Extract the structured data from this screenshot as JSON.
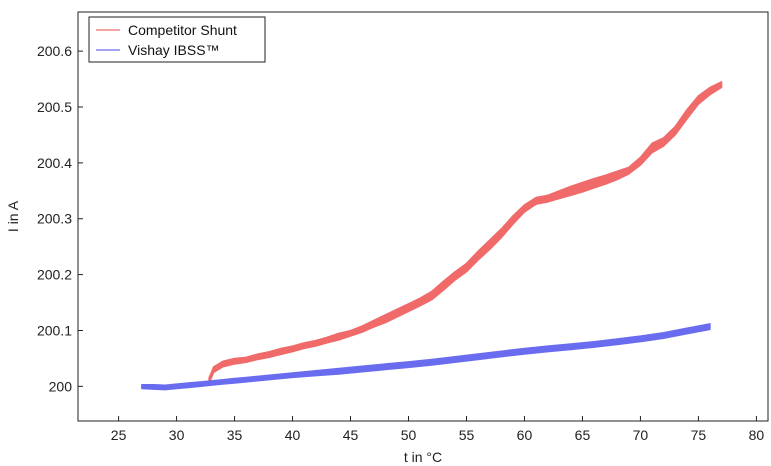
{
  "chart_data": {
    "type": "line",
    "title": "",
    "xlabel": "t in °C",
    "ylabel": "I in A",
    "xlim": [
      21.5,
      81
    ],
    "ylim": [
      199.938,
      200.67
    ],
    "x_ticks": [
      25,
      30,
      35,
      40,
      45,
      50,
      55,
      60,
      65,
      70,
      75,
      80
    ],
    "x_tick_labels": [
      "25",
      "30",
      "35",
      "40",
      "45",
      "50",
      "55",
      "60",
      "65",
      "70",
      "75",
      "80"
    ],
    "y_ticks": [
      200,
      200.1,
      200.2,
      200.3,
      200.4,
      200.5,
      200.6
    ],
    "y_tick_labels": [
      "200",
      "200.1",
      "200.2",
      "200.3",
      "200.4",
      "200.5",
      "200.6"
    ],
    "grid": false,
    "legend_position": "top-left",
    "series": [
      {
        "name": "Competitor Shunt",
        "color": "#f06a6a",
        "x": [
          32.8,
          33.2,
          34,
          35,
          36,
          37,
          38,
          39,
          40,
          41,
          42,
          43,
          44,
          45,
          46,
          47,
          48,
          49,
          50,
          51,
          52,
          53,
          54,
          55,
          56,
          57,
          58,
          59,
          60,
          61,
          62,
          63,
          64,
          65,
          66,
          67,
          68,
          69,
          70,
          71,
          72,
          73,
          74,
          75,
          76,
          77
        ],
        "upper": [
          200.015,
          200.035,
          200.045,
          200.05,
          200.052,
          200.058,
          200.062,
          200.068,
          200.072,
          200.078,
          200.082,
          200.088,
          200.095,
          200.1,
          200.108,
          200.118,
          200.128,
          200.138,
          200.148,
          200.158,
          200.17,
          200.188,
          200.205,
          200.22,
          200.242,
          200.262,
          200.282,
          200.305,
          200.325,
          200.338,
          200.342,
          200.35,
          200.358,
          200.365,
          200.372,
          200.378,
          200.385,
          200.392,
          200.41,
          200.435,
          200.445,
          200.465,
          200.495,
          200.52,
          200.535,
          200.545
        ],
        "lower": [
          200.005,
          200.025,
          200.035,
          200.04,
          200.043,
          200.048,
          200.052,
          200.057,
          200.062,
          200.068,
          200.072,
          200.078,
          200.083,
          200.09,
          200.097,
          200.106,
          200.114,
          200.124,
          200.134,
          200.144,
          200.155,
          200.172,
          200.19,
          200.205,
          200.226,
          200.245,
          200.266,
          200.29,
          200.312,
          200.326,
          200.33,
          200.336,
          200.342,
          200.348,
          200.355,
          200.362,
          200.37,
          200.38,
          200.396,
          200.418,
          200.43,
          200.45,
          200.478,
          200.505,
          200.522,
          200.535
        ]
      },
      {
        "name": "Vishay IBSS™",
        "color": "#6a6cf0",
        "x": [
          27,
          28,
          29,
          30,
          31,
          32,
          33,
          34,
          35,
          36,
          37,
          38,
          39,
          40,
          42,
          44,
          46,
          48,
          50,
          52,
          54,
          56,
          58,
          60,
          62,
          64,
          66,
          68,
          70,
          72,
          74,
          76
        ],
        "upper": [
          200.003,
          200.003,
          200.002,
          200.004,
          200.006,
          200.008,
          200.01,
          200.012,
          200.014,
          200.016,
          200.018,
          200.02,
          200.022,
          200.024,
          200.028,
          200.032,
          200.036,
          200.04,
          200.044,
          200.048,
          200.053,
          200.058,
          200.063,
          200.068,
          200.072,
          200.076,
          200.08,
          200.085,
          200.09,
          200.096,
          200.104,
          200.112
        ],
        "lower": [
          199.996,
          199.995,
          199.994,
          199.996,
          199.998,
          200.0,
          200.002,
          200.004,
          200.006,
          200.008,
          200.01,
          200.012,
          200.014,
          200.016,
          200.019,
          200.022,
          200.026,
          200.03,
          200.034,
          200.038,
          200.043,
          200.048,
          200.053,
          200.058,
          200.062,
          200.066,
          200.07,
          200.075,
          200.08,
          200.086,
          200.094,
          200.102
        ]
      }
    ]
  }
}
